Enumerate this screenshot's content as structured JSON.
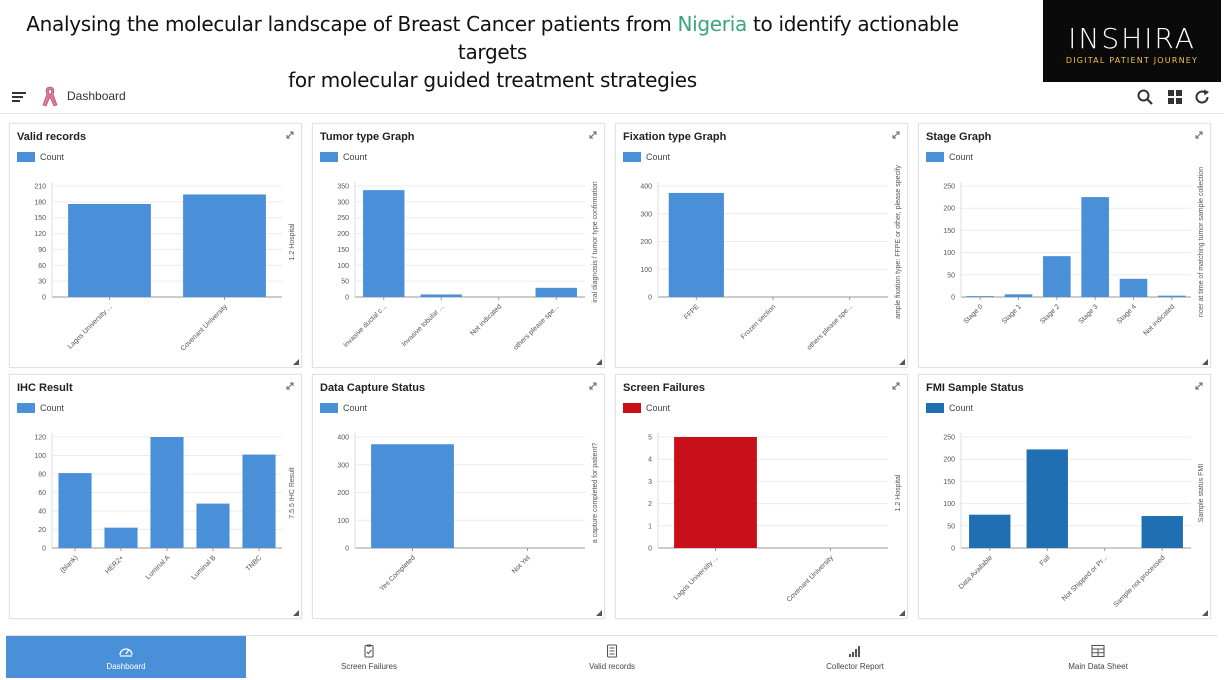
{
  "banner": {
    "title_part1": "Analysing the molecular landscape of Breast Cancer patients from ",
    "title_highlight": "Nigeria",
    "title_part2": " to identify actionable targets",
    "title_line2": "for molecular guided treatment strategies",
    "logo_main": "INSHIRA",
    "logo_sub": "DIGITAL PATIENT JOURNEY"
  },
  "toolbar": {
    "title": "Dashboard"
  },
  "colors": {
    "blue": "#4a90d9",
    "red": "#c8101a",
    "darkblue": "#1f6fb2",
    "nav_active": "#4a90d9"
  },
  "panels": [
    {
      "title": "Valid records",
      "legend": "Count",
      "color": "blue",
      "ylabel": "1.2 Hospital",
      "chart_data": {
        "type": "bar",
        "categories": [
          "Lagos University ...",
          "Covenant University"
        ],
        "values": [
          176,
          194
        ],
        "ylim": [
          0,
          210
        ],
        "yticks": [
          0,
          30,
          60,
          90,
          120,
          150,
          180,
          210
        ]
      }
    },
    {
      "title": "Tumor type Graph",
      "legend": "Count",
      "color": "blue",
      "ylabel": "inal diagnosis / tumor type confirmation",
      "chart_data": {
        "type": "bar",
        "categories": [
          "Invasive ductal c...",
          "Invasive lobular ...",
          "Not indicated",
          "others please spe..."
        ],
        "values": [
          337,
          8,
          0,
          29
        ],
        "ylim": [
          0,
          350
        ],
        "yticks": [
          0,
          50,
          100,
          150,
          200,
          250,
          300,
          350
        ]
      }
    },
    {
      "title": "Fixation type Graph",
      "legend": "Count",
      "color": "blue",
      "ylabel": "ample fixation type: FFPE or other, please specify",
      "chart_data": {
        "type": "bar",
        "categories": [
          "FFPE",
          "Frozen section",
          "others please spe..."
        ],
        "values": [
          375,
          0,
          0
        ],
        "ylim": [
          0,
          400
        ],
        "yticks": [
          0,
          100,
          200,
          300,
          400
        ]
      }
    },
    {
      "title": "Stage Graph",
      "legend": "Count",
      "color": "blue",
      "ylabel": "ncer at time of matching tumor sample collection",
      "chart_data": {
        "type": "bar",
        "categories": [
          "Stage 0",
          "Stage 1",
          "Stage 2",
          "Stage 3",
          "Stage 4",
          "Not indicated"
        ],
        "values": [
          2,
          6,
          92,
          225,
          41,
          3
        ],
        "ylim": [
          0,
          250
        ],
        "yticks": [
          0,
          50,
          100,
          150,
          200,
          250
        ]
      }
    },
    {
      "title": "IHC Result",
      "legend": "Count",
      "color": "blue",
      "ylabel": "7.5.5 IHC Result",
      "chart_data": {
        "type": "bar",
        "categories": [
          "(blank)",
          "HER2+",
          "Luminal A",
          "Luminal B",
          "TNBC"
        ],
        "values": [
          81,
          22,
          120,
          48,
          101
        ],
        "ylim": [
          0,
          120
        ],
        "yticks": [
          0,
          20,
          40,
          60,
          80,
          100,
          120
        ]
      }
    },
    {
      "title": "Data Capture Status",
      "legend": "Count",
      "color": "blue",
      "ylabel": "a capture completed for patient?",
      "chart_data": {
        "type": "bar",
        "categories": [
          "Yes Completed",
          "Not Yet"
        ],
        "values": [
          374,
          0
        ],
        "ylim": [
          0,
          400
        ],
        "yticks": [
          0,
          100,
          200,
          300,
          400
        ]
      }
    },
    {
      "title": "Screen Failures",
      "legend": "Count",
      "color": "red",
      "ylabel": "1.2 Hospital",
      "chart_data": {
        "type": "bar",
        "categories": [
          "Lagos University ...",
          "Covenant University"
        ],
        "values": [
          5,
          0
        ],
        "ylim": [
          0,
          5
        ],
        "yticks": [
          0,
          1,
          2,
          3,
          4,
          5
        ]
      }
    },
    {
      "title": "FMI Sample Status",
      "legend": "Count",
      "color": "darkblue",
      "ylabel": "Sample status FMI",
      "chart_data": {
        "type": "bar",
        "categories": [
          "Data Available",
          "Fail",
          "Not Shipped or Pr...",
          "Sample not processed"
        ],
        "values": [
          75,
          222,
          0,
          72
        ],
        "ylim": [
          0,
          250
        ],
        "yticks": [
          0,
          50,
          100,
          150,
          200,
          250
        ]
      }
    }
  ],
  "bottom_nav": [
    {
      "label": "Dashboard",
      "icon": "speedometer-icon",
      "active": true
    },
    {
      "label": "Screen Failures",
      "icon": "clipboard-check-icon",
      "active": false
    },
    {
      "label": "Valid records",
      "icon": "list-document-icon",
      "active": false
    },
    {
      "label": "Collector Report",
      "icon": "bar-signal-icon",
      "active": false
    },
    {
      "label": "Main Data Sheet",
      "icon": "table-grid-icon",
      "active": false
    }
  ]
}
